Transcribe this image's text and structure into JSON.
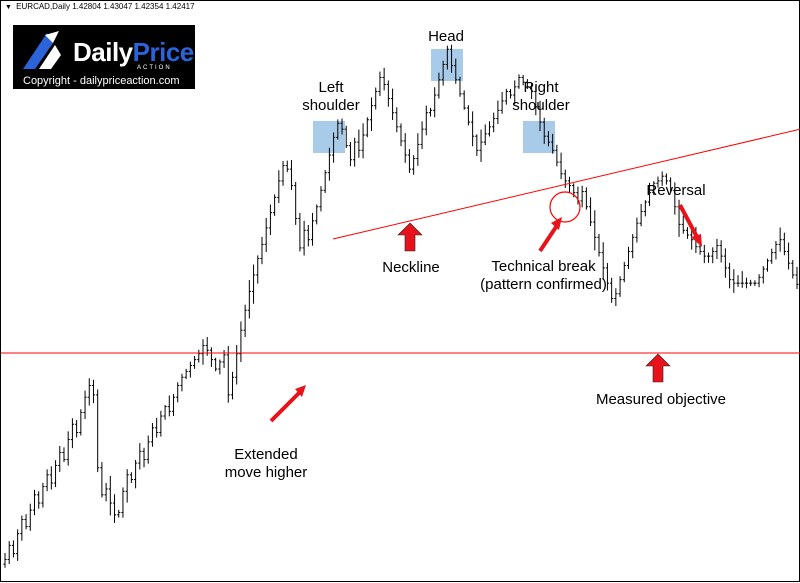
{
  "header": {
    "symbol": "EURCAD,Daily",
    "ohlc": "1.42804 1.43047 1.42354 1.42417"
  },
  "logo": {
    "brand_main": "Daily",
    "brand_accent": "Price",
    "brand_sub": "ACTION",
    "copyright": "Copyright - dailypriceaction.com"
  },
  "annotations": {
    "left_shoulder": "Left\nshoulder",
    "head": "Head",
    "right_shoulder": "Right\nshoulder",
    "neckline": "Neckline",
    "technical_break": "Technical break\n(pattern confirmed)",
    "reversal": "Reversal",
    "extended_move": "Extended\nmove higher",
    "measured_objective": "Measured objective"
  },
  "colors": {
    "background": "#ffffff",
    "candles": "#000000",
    "lines": "#ff0000",
    "arrows": "#e8121a",
    "highlight": "#6fa8dc",
    "logo_accent": "#2b63d9"
  },
  "chart_data": {
    "type": "line",
    "series_style": "ohlc-bars",
    "symbol": "EURCAD",
    "timeframe": "Daily",
    "title": "",
    "xlabel": "",
    "ylabel": "",
    "bar_closes": [
      1.19,
      1.202,
      1.195,
      1.212,
      1.224,
      1.218,
      1.232,
      1.245,
      1.238,
      1.252,
      1.262,
      1.255,
      1.27,
      1.281,
      1.275,
      1.292,
      1.305,
      1.298,
      1.315,
      1.328,
      1.338,
      1.33,
      1.268,
      1.245,
      1.25,
      1.238,
      1.228,
      1.23,
      1.248,
      1.262,
      1.258,
      1.272,
      1.282,
      1.275,
      1.29,
      1.302,
      1.298,
      1.312,
      1.32,
      1.316,
      1.328,
      1.338,
      1.345,
      1.35,
      1.355,
      1.36,
      1.365,
      1.372,
      1.368,
      1.36,
      1.352,
      1.358,
      1.364,
      1.33,
      1.345,
      1.365,
      1.385,
      1.402,
      1.418,
      1.432,
      1.446,
      1.458,
      1.472,
      1.485,
      1.498,
      1.512,
      1.525,
      1.522,
      1.508,
      1.48,
      1.455,
      1.47,
      1.462,
      1.478,
      1.49,
      1.504,
      1.519,
      1.534,
      1.549,
      1.561,
      1.556,
      1.542,
      1.53,
      1.545,
      1.538,
      1.551,
      1.564,
      1.576,
      1.588,
      1.6,
      1.594,
      1.582,
      1.57,
      1.558,
      1.546,
      1.534,
      1.522,
      1.531,
      1.543,
      1.556,
      1.57,
      1.572,
      1.585,
      1.598,
      1.611,
      1.624,
      1.61,
      1.598,
      1.586,
      1.574,
      1.562,
      1.55,
      1.538,
      1.545,
      1.552,
      1.558,
      1.565,
      1.572,
      1.58,
      1.588,
      1.585,
      1.592,
      1.6,
      1.596,
      1.592,
      1.588,
      1.575,
      1.562,
      1.55,
      1.545,
      1.538,
      1.528,
      1.518,
      1.512,
      1.508,
      1.502,
      1.495,
      1.503,
      1.49,
      1.477,
      1.464,
      1.451,
      1.438,
      1.425,
      1.412,
      1.416,
      1.428,
      1.44,
      1.452,
      1.464,
      1.476,
      1.486,
      1.494,
      1.502,
      1.51,
      1.512,
      1.516,
      1.512,
      1.504,
      1.49,
      1.475,
      1.47,
      1.466,
      1.462,
      1.456,
      1.452,
      1.448,
      1.448,
      1.452,
      1.457,
      1.448,
      1.438,
      1.428,
      1.425,
      1.425,
      1.425,
      1.425,
      1.425,
      1.425,
      1.43,
      1.437,
      1.444,
      1.451,
      1.458,
      1.462,
      1.452,
      1.442,
      1.432,
      1.424
    ],
    "ylim": [
      1.17,
      1.665
    ],
    "grid": false,
    "legend": "none"
  }
}
